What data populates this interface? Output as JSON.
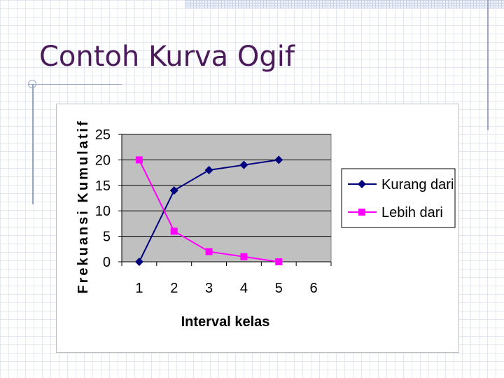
{
  "slide": {
    "title": "Contoh Kurva Ogif"
  },
  "chart_data": {
    "type": "line",
    "title": "",
    "xlabel": "Interval kelas",
    "ylabel": "Frekuansi Kumulatif",
    "categories": [
      "1",
      "2",
      "3",
      "4",
      "5",
      "6"
    ],
    "ylim": [
      0,
      25
    ],
    "yticks": [
      0,
      5,
      10,
      15,
      20,
      25
    ],
    "grid": true,
    "legend_position": "right",
    "series": [
      {
        "name": "Kurang dari",
        "values": [
          0,
          14,
          18,
          19,
          20,
          null
        ],
        "color": "#00007f",
        "marker": "diamond"
      },
      {
        "name": "Lebih dari",
        "values": [
          20,
          6,
          2,
          1,
          0,
          null
        ],
        "color": "#ff00ff",
        "marker": "square"
      }
    ],
    "plot_background": "#c0c0c0"
  }
}
